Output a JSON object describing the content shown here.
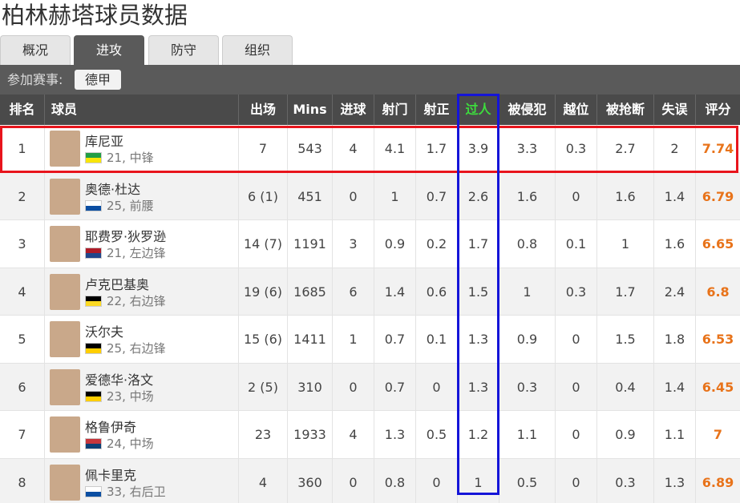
{
  "header": {
    "title": "柏林赫塔球员数据"
  },
  "tabs": [
    "概况",
    "进攻",
    "防守",
    "组织"
  ],
  "filter": {
    "label": "参加赛事:",
    "button": "德甲"
  },
  "table": {
    "columns": [
      "排名",
      "球员",
      "出场",
      "Mins",
      "进球",
      "射门",
      "射正",
      "过人",
      "被侵犯",
      "越位",
      "被抢断",
      "失误",
      "评分"
    ],
    "rows": [
      [
        "1",
        {
          "name": "库尼亚",
          "info": "21, 中锋"
        },
        "7",
        "543",
        "4",
        "4.1",
        "1.7",
        "3.9",
        "3.3",
        "0.3",
        "2.7",
        "2",
        "7.74"
      ],
      [
        "2",
        {
          "name": "奥德·杜达",
          "info": "25, 前腰"
        },
        "6 (1)",
        "451",
        "0",
        "1",
        "0.7",
        "2.6",
        "1.6",
        "0",
        "1.6",
        "1.4",
        "6.79"
      ],
      [
        "3",
        {
          "name": "耶费罗·狄罗逊",
          "info": "21, 左边锋"
        },
        "14 (7)",
        "1191",
        "3",
        "0.9",
        "0.2",
        "1.7",
        "0.8",
        "0.1",
        "1",
        "1.6",
        "6.65"
      ],
      [
        "4",
        {
          "name": "卢克巴基奥",
          "info": "22, 右边锋"
        },
        "19 (6)",
        "1685",
        "6",
        "1.4",
        "0.6",
        "1.5",
        "1",
        "0.3",
        "1.7",
        "2.4",
        "6.8"
      ],
      [
        "5",
        {
          "name": "沃尔夫",
          "info": "25, 右边锋"
        },
        "15 (6)",
        "1411",
        "1",
        "0.7",
        "0.1",
        "1.3",
        "0.9",
        "0",
        "1.5",
        "1.8",
        "6.53"
      ],
      [
        "6",
        {
          "name": "爱德华·洛文",
          "info": "23, 中场"
        },
        "2 (5)",
        "310",
        "0",
        "0.7",
        "0",
        "1.3",
        "0.3",
        "0",
        "0.4",
        "1.4",
        "6.45"
      ],
      [
        "7",
        {
          "name": "格鲁伊奇",
          "info": "24, 中场"
        },
        "23",
        "1933",
        "4",
        "1.3",
        "0.5",
        "1.2",
        "1.1",
        "0",
        "0.9",
        "1.1",
        "7"
      ],
      [
        "8",
        {
          "name": "佩卡里克",
          "info": "33, 右后卫"
        },
        "4",
        "360",
        "0",
        "0.8",
        "0",
        "1",
        "0.5",
        "0",
        "0.3",
        "1.3",
        "6.89"
      ]
    ]
  }
}
